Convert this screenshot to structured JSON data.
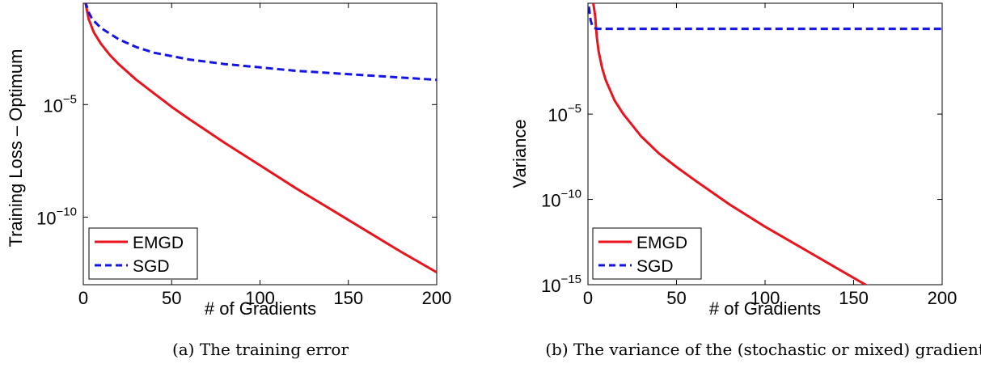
{
  "chart_data": [
    {
      "type": "line",
      "caption": "(a) The training error",
      "xlabel": "# of Gradients",
      "ylabel": "Training Loss – Optimum",
      "xlim": [
        0,
        200
      ],
      "ylim_log10": [
        -13,
        -0.5
      ],
      "xticks": [
        0,
        50,
        100,
        150,
        200
      ],
      "yticks": [
        {
          "base": "10",
          "exp": "−5",
          "log10": -5
        },
        {
          "base": "10",
          "exp": "−10",
          "log10": -10
        }
      ],
      "grid": false,
      "legend": "bottom-left",
      "series": [
        {
          "name": "EMGD",
          "color": "#e8141e",
          "style": "solid",
          "x": [
            1,
            3,
            6,
            10,
            15,
            20,
            30,
            40,
            50,
            60,
            80,
            100,
            120,
            140,
            160,
            180,
            200
          ],
          "log10y": [
            -0.4,
            -1.2,
            -1.8,
            -2.3,
            -2.8,
            -3.2,
            -3.9,
            -4.5,
            -5.1,
            -5.65,
            -6.7,
            -7.7,
            -8.7,
            -9.65,
            -10.6,
            -11.55,
            -12.45
          ]
        },
        {
          "name": "SGD",
          "color": "#1414e6",
          "style": "dashed",
          "x": [
            1,
            3,
            5,
            10,
            20,
            30,
            40,
            50,
            60,
            80,
            100,
            120,
            140,
            160,
            180,
            200
          ],
          "log10y": [
            -0.4,
            -0.9,
            -1.2,
            -1.6,
            -2.1,
            -2.45,
            -2.7,
            -2.85,
            -3.0,
            -3.2,
            -3.35,
            -3.5,
            -3.6,
            -3.7,
            -3.8,
            -3.9
          ]
        }
      ]
    },
    {
      "type": "line",
      "caption": "(b) The variance of the (stochastic or mixed) gradient",
      "xlabel": "# of Gradients",
      "ylabel": "Variance",
      "xlim": [
        0,
        200
      ],
      "ylim_log10": [
        -15,
        1.5
      ],
      "xticks": [
        0,
        50,
        100,
        150,
        200
      ],
      "yticks": [
        {
          "base": "10",
          "exp": "−5",
          "log10": -5
        },
        {
          "base": "10",
          "exp": "−10",
          "log10": -10
        },
        {
          "base": "10",
          "exp": "−15",
          "log10": -15
        }
      ],
      "grid": false,
      "legend": "bottom-left",
      "series": [
        {
          "name": "EMGD",
          "color": "#e8141e",
          "style": "solid",
          "x": [
            3,
            4,
            5,
            6,
            8,
            10,
            15,
            20,
            30,
            40,
            50,
            60,
            80,
            100,
            120,
            140,
            160,
            180,
            191
          ],
          "log10y": [
            1.5,
            0.8,
            -0.5,
            -1.3,
            -2.3,
            -3.0,
            -4.2,
            -5.0,
            -6.3,
            -7.3,
            -8.1,
            -8.85,
            -10.3,
            -11.6,
            -12.8,
            -14.0,
            -15.2,
            -16.4,
            -17.0
          ]
        },
        {
          "name": "SGD",
          "color": "#1414e6",
          "style": "dashed",
          "x": [
            0.5,
            1.5,
            2.5,
            3.5,
            5,
            10,
            50,
            100,
            150,
            200
          ],
          "log10y": [
            1.3,
            0.5,
            0.15,
            0.05,
            0.0,
            0.0,
            0.0,
            0.0,
            0.0,
            0.0
          ]
        }
      ]
    }
  ]
}
